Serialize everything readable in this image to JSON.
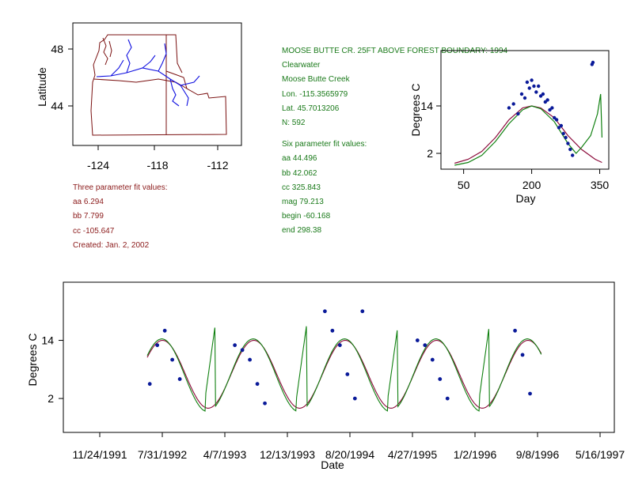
{
  "colors": {
    "axis": "#000000",
    "site_text": "#1a7a1a",
    "three_param_text": "#8b1a1a",
    "map_border": "#7a1010",
    "river": "#1010e0",
    "points": "#0a1a99",
    "fit3": "#8b0a3a",
    "fit6": "#108010"
  },
  "site_info": {
    "title": "MOOSE BUTTE CR. 25FT ABOVE FOREST BOUNDARY:  1994",
    "region": "Clearwater",
    "stream": "Moose Butte Creek",
    "lon": "Lon. -115.3565979",
    "lat": "Lat. 45.7013206",
    "n": "N: 592"
  },
  "six_param": {
    "heading": "Six parameter fit values:",
    "aa": "aa 44.496",
    "bb": "bb 42.062",
    "cc": "cc 325.843",
    "mag": "mag 79.213",
    "begin": "begin -60.168",
    "end": "end 298.38"
  },
  "three_param": {
    "heading": "Three parameter fit values:",
    "aa": "aa 6.294",
    "bb": "bb 7.799",
    "cc": "cc -105.647",
    "created": "Created:   Jan. 2, 2002"
  },
  "map": {
    "ylabel": "Latitude",
    "yticks": [
      "48",
      "44"
    ],
    "xticks": [
      "-124",
      "-118",
      "-112"
    ]
  },
  "chart_data": [
    {
      "id": "day_of_year",
      "type": "scatter",
      "title": "",
      "xlabel": "Day",
      "ylabel": "Degrees C",
      "xlim": [
        0,
        370
      ],
      "ylim": [
        -2,
        28
      ],
      "xticks": [
        "50",
        "200",
        "350"
      ],
      "yticks": [
        "2",
        "14"
      ],
      "series": [
        {
          "name": "observed temperature",
          "kind": "points",
          "x": [
            150,
            160,
            170,
            178,
            185,
            190,
            195,
            200,
            205,
            210,
            215,
            220,
            225,
            230,
            235,
            240,
            245,
            250,
            255,
            260,
            265,
            270,
            275,
            280,
            285,
            290,
            333,
            335
          ],
          "y": [
            13.5,
            14.5,
            12.0,
            17.0,
            16.0,
            20.0,
            18.5,
            20.5,
            19.0,
            17.5,
            19.0,
            16.5,
            17.0,
            15.0,
            15.5,
            13.0,
            13.5,
            11.0,
            10.5,
            8.5,
            9.0,
            7.0,
            6.0,
            4.5,
            3.0,
            1.5,
            24.5,
            25.0
          ]
        },
        {
          "name": "three parameter fit",
          "kind": "line",
          "x": [
            30,
            60,
            90,
            120,
            150,
            180,
            200,
            220,
            250,
            280,
            310,
            340,
            355
          ],
          "y": [
            -0.5,
            0.5,
            2.5,
            6.0,
            10.5,
            13.5,
            14.0,
            13.5,
            11.0,
            6.5,
            3.0,
            0.5,
            -0.3
          ]
        },
        {
          "name": "six parameter fit",
          "kind": "line",
          "x": [
            30,
            60,
            90,
            120,
            150,
            180,
            200,
            220,
            250,
            280,
            298,
            310,
            330,
            345,
            352,
            355
          ],
          "y": [
            -1.0,
            -0.3,
            1.5,
            5.0,
            9.5,
            13.0,
            14.0,
            13.3,
            10.0,
            4.5,
            2.0,
            3.5,
            6.5,
            12.0,
            17.0,
            6.0
          ]
        }
      ]
    },
    {
      "id": "time_series",
      "type": "scatter",
      "title": "",
      "xlabel": "Date",
      "ylabel": "Degrees C",
      "xlim": [
        "11/24/1991",
        "5/16/1997"
      ],
      "ylim": [
        -5,
        26
      ],
      "xticks": [
        "11/24/1991",
        "7/31/1992",
        "4/7/1993",
        "12/13/1993",
        "8/20/1994",
        "4/27/1995",
        "1/2/1996",
        "9/8/1996",
        "5/16/1997"
      ],
      "yticks": [
        "2",
        "14"
      ],
      "series": [
        {
          "name": "observed temperature",
          "kind": "points",
          "x_days": [
            200,
            230,
            260,
            290,
            320,
            540,
            570,
            600,
            630,
            660,
            900,
            930,
            960,
            990,
            1020,
            1050,
            1270,
            1300,
            1330,
            1360,
            1390,
            1660,
            1690,
            1720
          ],
          "y": [
            5,
            13,
            16,
            10,
            6,
            13,
            12,
            10,
            5,
            1,
            20,
            16,
            13,
            7,
            2,
            20,
            14,
            13,
            10,
            6,
            2,
            16,
            11,
            3
          ]
        },
        {
          "name": "three parameter fit",
          "kind": "line",
          "x_days": [],
          "y": []
        },
        {
          "name": "six parameter fit",
          "kind": "line",
          "x_days": [],
          "y": []
        }
      ]
    }
  ]
}
